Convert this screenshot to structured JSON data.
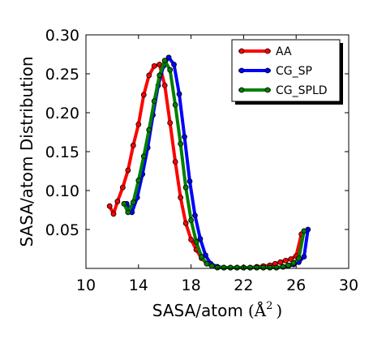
{
  "chart_data": {
    "type": "line",
    "xlabel": "SASA/atom",
    "xlabel_unit": "(Å",
    "xlabel_unit_sup": "2",
    "xlabel_unit_close": ")",
    "ylabel": "SASA/atom  Distribution",
    "xlim": [
      10,
      30
    ],
    "ylim": [
      0,
      0.3
    ],
    "xticks": [
      10,
      14,
      18,
      22,
      26,
      30
    ],
    "yticks": [
      0.05,
      0.1,
      0.15,
      0.2,
      0.25,
      0.3
    ],
    "xtick_labels": [
      "10",
      "14",
      "18",
      "22",
      "26",
      "30"
    ],
    "ytick_labels": [
      "0.05",
      "0.10",
      "0.15",
      "0.20",
      "0.25",
      "0.30"
    ],
    "grid": false,
    "legend_position": "top-right",
    "series": [
      {
        "name": "AA",
        "color": "#ff0000",
        "x": [
          11.8,
          12.1,
          12.4,
          12.8,
          13.2,
          13.6,
          14.0,
          14.4,
          14.8,
          15.2,
          15.6,
          16.0,
          16.4,
          16.8,
          17.2,
          17.6,
          18.0,
          18.4,
          18.8,
          19.2,
          19.6,
          20.0,
          20.5,
          21.0,
          21.5,
          22.0,
          22.5,
          23.0,
          23.5,
          24.0,
          24.4,
          24.8,
          25.2,
          25.6,
          26.0,
          26.4
        ],
        "y": [
          0.08,
          0.07,
          0.086,
          0.104,
          0.126,
          0.158,
          0.185,
          0.223,
          0.248,
          0.26,
          0.262,
          0.235,
          0.187,
          0.137,
          0.091,
          0.058,
          0.037,
          0.024,
          0.013,
          0.006,
          0.003,
          0.002,
          0.001,
          0.001,
          0.001,
          0.001,
          0.001,
          0.002,
          0.003,
          0.004,
          0.006,
          0.008,
          0.01,
          0.012,
          0.016,
          0.044
        ]
      },
      {
        "name": "CG_SP",
        "color": "#0000ff",
        "x": [
          13.1,
          13.5,
          13.9,
          14.3,
          14.7,
          15.1,
          15.5,
          15.9,
          16.3,
          16.7,
          17.1,
          17.5,
          17.9,
          18.3,
          18.7,
          19.1,
          19.5,
          20.0,
          20.5,
          21.0,
          21.5,
          22.0,
          22.5,
          23.0,
          23.5,
          24.0,
          24.5,
          25.0,
          25.4,
          25.8,
          26.2,
          26.6,
          26.9
        ],
        "y": [
          0.083,
          0.072,
          0.091,
          0.121,
          0.155,
          0.197,
          0.235,
          0.26,
          0.271,
          0.262,
          0.224,
          0.169,
          0.112,
          0.068,
          0.038,
          0.017,
          0.006,
          0.002,
          0.001,
          0.001,
          0.001,
          0.001,
          0.001,
          0.001,
          0.001,
          0.001,
          0.001,
          0.002,
          0.003,
          0.005,
          0.008,
          0.015,
          0.05
        ]
      },
      {
        "name": "CG_SPLD",
        "color": "#008000",
        "x": [
          12.9,
          13.2,
          13.6,
          14.0,
          14.4,
          14.8,
          15.2,
          15.6,
          16.0,
          16.4,
          16.8,
          17.2,
          17.6,
          18.0,
          18.4,
          18.8,
          19.2,
          19.6,
          20.0,
          20.5,
          21.0,
          21.5,
          22.0,
          22.5,
          23.0,
          23.5,
          24.0,
          24.5,
          25.0,
          25.4,
          25.8,
          26.2,
          26.6
        ],
        "y": [
          0.083,
          0.072,
          0.085,
          0.113,
          0.144,
          0.178,
          0.215,
          0.248,
          0.267,
          0.255,
          0.21,
          0.16,
          0.104,
          0.062,
          0.034,
          0.015,
          0.006,
          0.003,
          0.001,
          0.001,
          0.001,
          0.001,
          0.001,
          0.001,
          0.001,
          0.001,
          0.001,
          0.001,
          0.002,
          0.004,
          0.007,
          0.013,
          0.048
        ]
      }
    ]
  }
}
